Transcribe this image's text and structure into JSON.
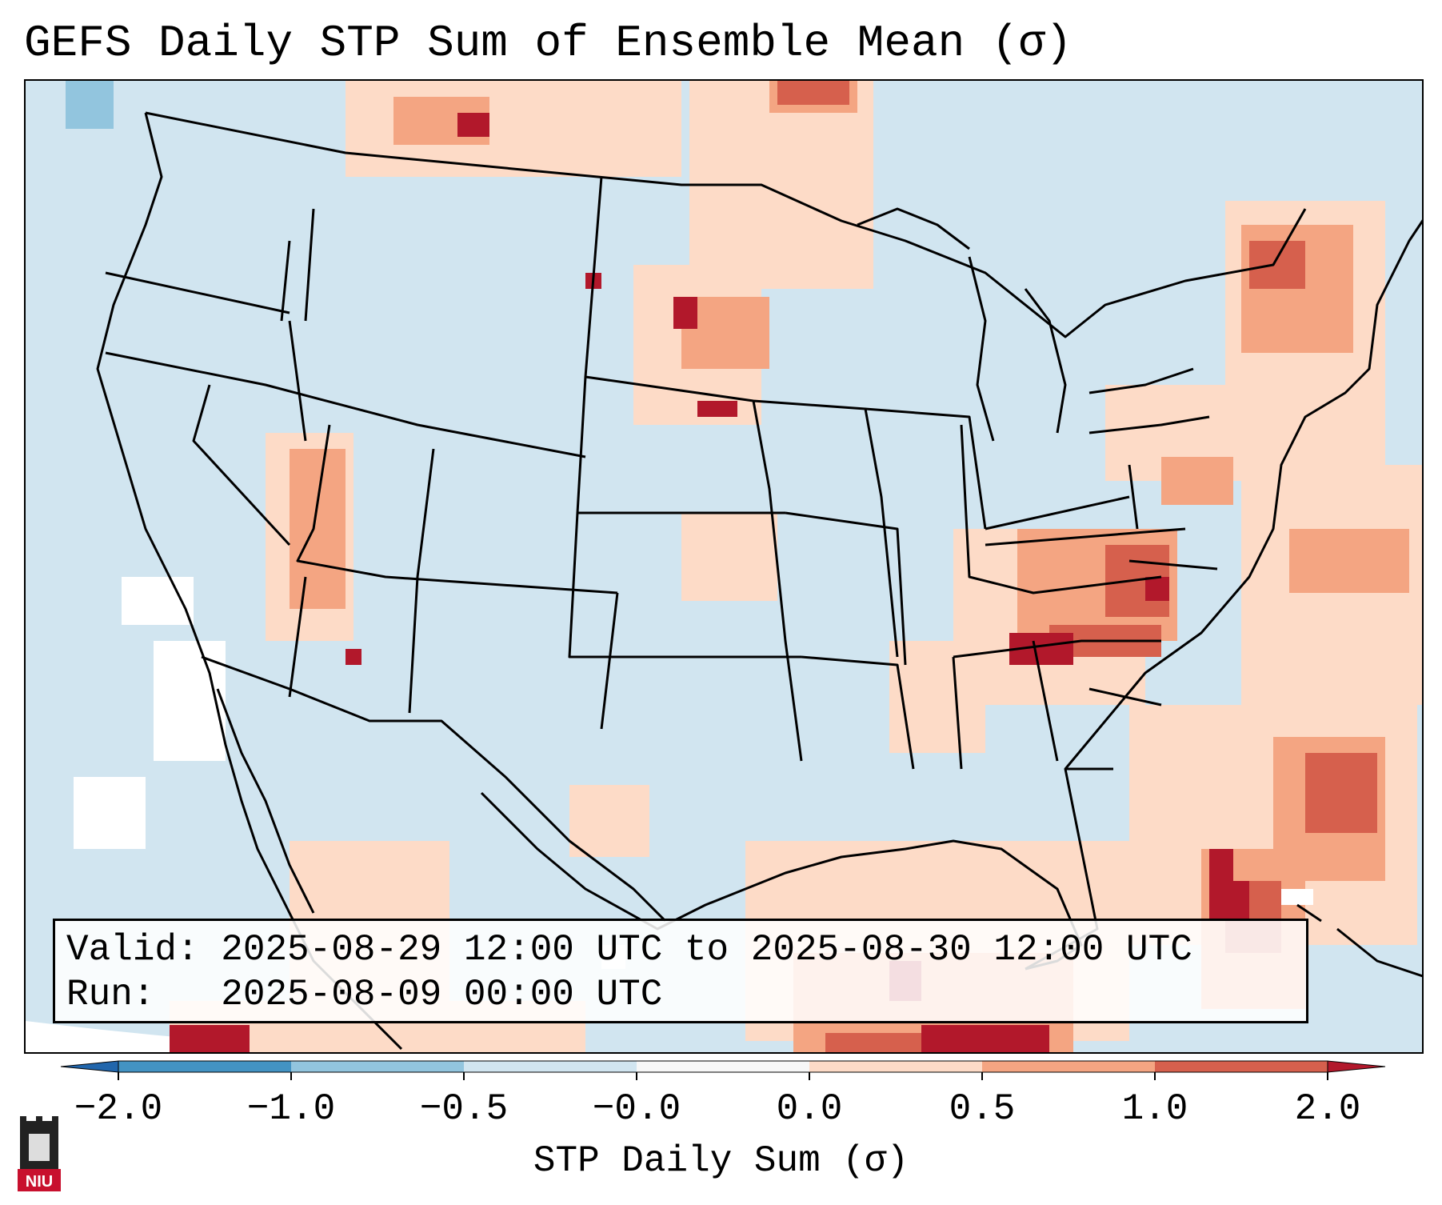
{
  "header": {
    "title": "GEFS Daily STP Sum of Ensemble Mean (σ)"
  },
  "info": {
    "valid_line": "Valid: 2025-08-29 12:00 UTC to 2025-08-30 12:00 UTC",
    "run_line": "Run:   2025-08-09 00:00 UTC"
  },
  "colorbar": {
    "label": "STP Daily Sum (σ)",
    "tick_labels": [
      "−2.0",
      "−1.0",
      "−0.5",
      "−0.0",
      "0.0",
      "0.5",
      "1.0",
      "2.0"
    ],
    "bins": [
      {
        "range": [
          -2.0,
          -1.0
        ],
        "color": "#4393c3"
      },
      {
        "range": [
          -1.0,
          -0.5
        ],
        "color": "#92c5de"
      },
      {
        "range": [
          -0.5,
          -0.0
        ],
        "color": "#d1e5f0"
      },
      {
        "range": [
          -0.0,
          0.0
        ],
        "color": "#f7f7f7"
      },
      {
        "range": [
          0.0,
          0.5
        ],
        "color": "#fddbc7"
      },
      {
        "range": [
          0.5,
          1.0
        ],
        "color": "#f4a582"
      },
      {
        "range": [
          1.0,
          2.0
        ],
        "color": "#d6604d"
      }
    ],
    "under_color": "#2166ac",
    "over_color": "#b2182b"
  },
  "logo": {
    "text": "NIU"
  }
}
